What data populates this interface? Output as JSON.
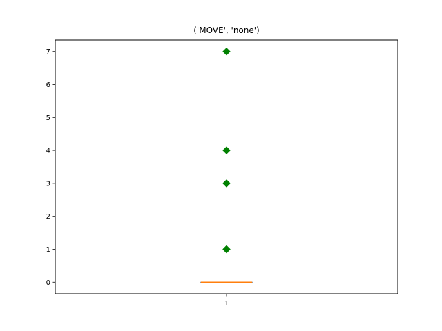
{
  "chart_data": {
    "type": "box",
    "title": "('MOVE', 'none')",
    "xlabel": "",
    "ylabel": "",
    "categories": [
      "1"
    ],
    "ylim": [
      -0.35,
      7.35
    ],
    "yticks": [
      0,
      1,
      2,
      3,
      4,
      5,
      6,
      7
    ],
    "grid": false,
    "boxes": [
      {
        "category": "1",
        "q1": 0,
        "median": 0,
        "q3": 0,
        "whisker_low": 0,
        "whisker_high": 0,
        "outliers": [
          1,
          1,
          3,
          3,
          4,
          7
        ]
      }
    ],
    "colors": {
      "box": "#000000",
      "median": "#ff7f0e",
      "outlier": "#008000"
    }
  }
}
